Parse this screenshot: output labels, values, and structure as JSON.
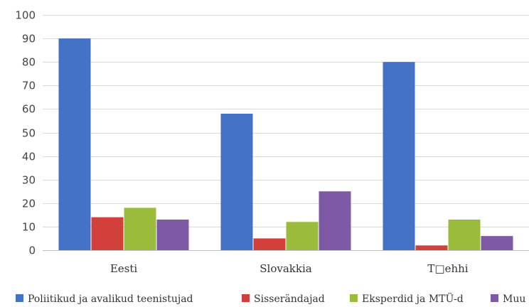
{
  "chart_data": {
    "type": "bar",
    "categories": [
      "Eesti",
      "Slovakkia",
      "T□ehhi"
    ],
    "series": [
      {
        "name": "Poliitikud ja avalikud teenistujad",
        "color": "#4472C4",
        "values": [
          90,
          58,
          80
        ]
      },
      {
        "name": "Sisserändajad",
        "color": "#D2403B",
        "values": [
          14,
          5,
          2
        ]
      },
      {
        "name": "Eksperdid ja MTÜ-d",
        "color": "#9BBB3B",
        "values": [
          18,
          12,
          13
        ]
      },
      {
        "name": "Muu",
        "color": "#7E5AA6",
        "values": [
          13,
          25,
          6
        ]
      }
    ],
    "yticks": [
      "0",
      "10",
      "20",
      "30",
      "40",
      "50",
      "60",
      "70",
      "80",
      "90",
      "100"
    ],
    "ylim": [
      0,
      100
    ],
    "grid": true,
    "legend_position": "bottom"
  }
}
